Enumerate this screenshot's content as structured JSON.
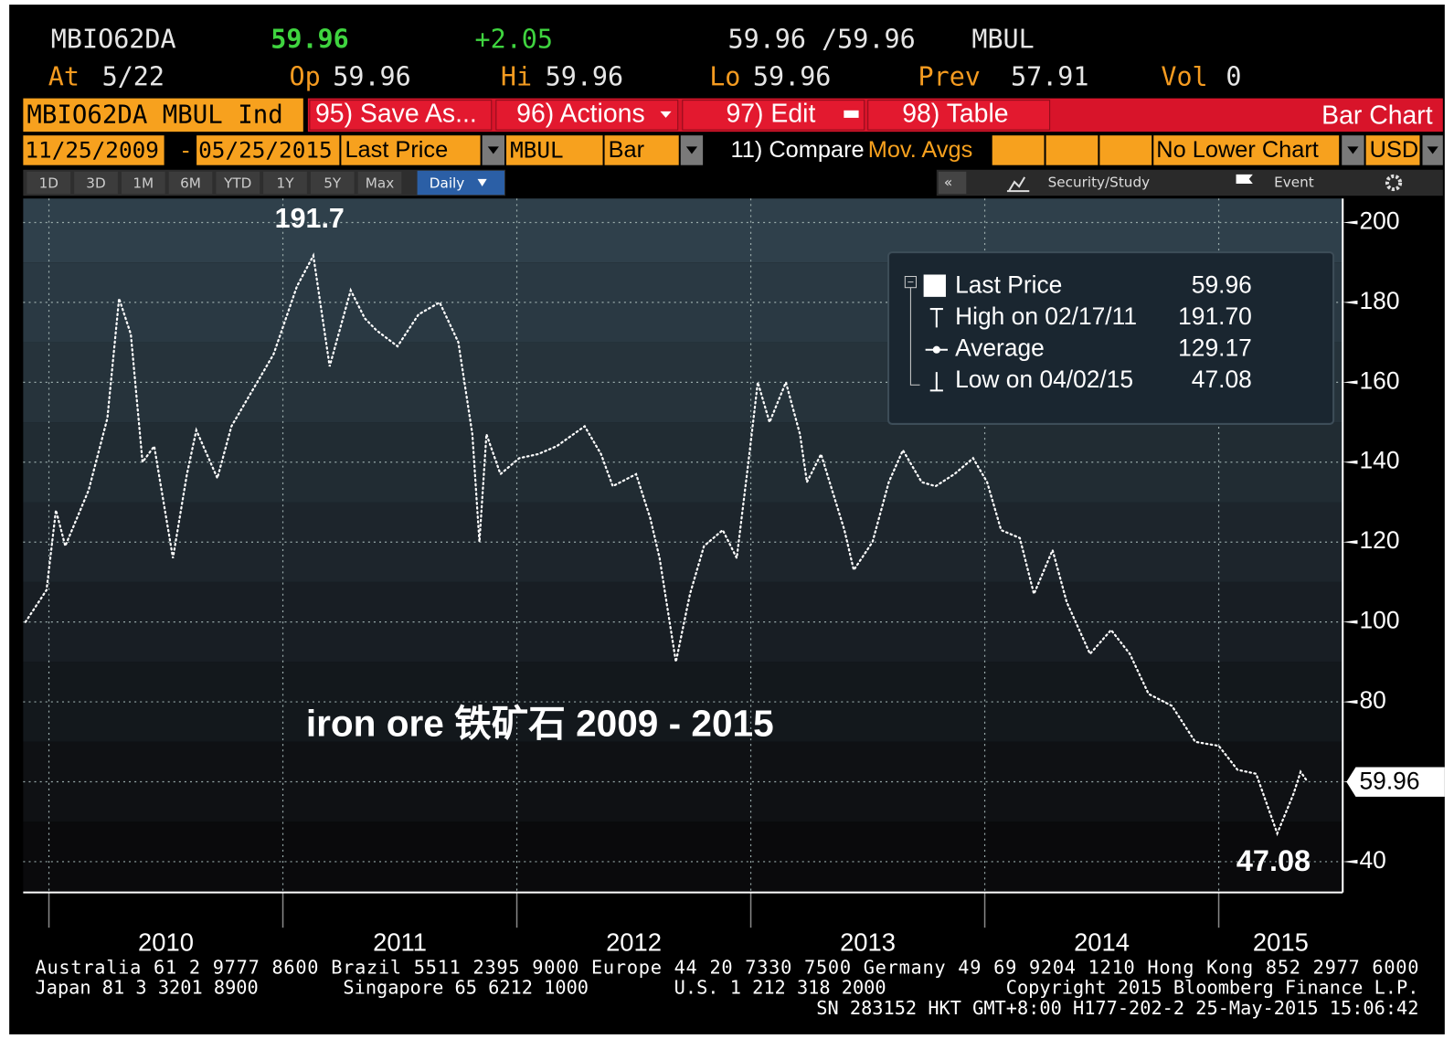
{
  "header": {
    "ticker": "MBIO62DA",
    "price": "59.96",
    "change": "+2.05",
    "bid_ask": "59.96 /59.96",
    "source": "MBUL",
    "stats": [
      {
        "label": "At",
        "value": "5/22"
      },
      {
        "label": "Op",
        "value": "59.96"
      },
      {
        "label": "Hi",
        "value": "59.96"
      },
      {
        "label": "Lo",
        "value": "59.96"
      },
      {
        "label": "Prev",
        "value": "57.91"
      },
      {
        "label": "Vol",
        "value": "0"
      }
    ]
  },
  "toolbar": {
    "security": "MBIO62DA MBUL Ind",
    "buttons": [
      "95) Save As...",
      "96) Actions",
      "97) Edit",
      "98) Table"
    ],
    "chart_kind": "Bar Chart",
    "start_date": "11/25/2009",
    "date_sep": "-",
    "end_date": "05/25/2015",
    "field": "Last Price",
    "source": "MBUL",
    "style": "Bar",
    "compare": "11) Compare",
    "studies": "Mov. Avgs",
    "lower": "No Lower Chart",
    "currency": "USD",
    "periods": [
      "1D",
      "3D",
      "1M",
      "6M",
      "YTD",
      "1Y",
      "5Y",
      "Max"
    ],
    "frequency": "Daily",
    "collapse": "«",
    "security_study": "Security/Study",
    "event": "Event"
  },
  "chart_data": {
    "type": "line",
    "caption": "iron ore 铁矿石 2009 - 2015",
    "x": [
      2009.9,
      2009.99,
      2010.03,
      2010.07,
      2010.17,
      2010.25,
      2010.3,
      2010.35,
      2010.4,
      2010.45,
      2010.53,
      2010.59,
      2010.63,
      2010.72,
      2010.78,
      2010.87,
      2010.96,
      2011.06,
      2011.13,
      2011.2,
      2011.29,
      2011.35,
      2011.4,
      2011.49,
      2011.58,
      2011.67,
      2011.75,
      2011.81,
      2011.84,
      2011.87,
      2011.93,
      2012.01,
      2012.09,
      2012.17,
      2012.29,
      2012.36,
      2012.41,
      2012.51,
      2012.57,
      2012.61,
      2012.68,
      2012.74,
      2012.8,
      2012.88,
      2012.94,
      2012.99,
      2013.03,
      2013.08,
      2013.15,
      2013.21,
      2013.24,
      2013.3,
      2013.4,
      2013.44,
      2013.52,
      2013.59,
      2013.65,
      2013.73,
      2013.79,
      2013.87,
      2013.95,
      2014.01,
      2014.07,
      2014.15,
      2014.21,
      2014.29,
      2014.35,
      2014.45,
      2014.54,
      2014.62,
      2014.7,
      2014.8,
      2014.9,
      2015.0,
      2015.08,
      2015.16,
      2015.25,
      2015.32,
      2015.35,
      2015.38
    ],
    "series": [
      {
        "name": "Last Price",
        "color": "#ffffff",
        "values": [
          100,
          108,
          128,
          119,
          133,
          151,
          181,
          172,
          140,
          144,
          116,
          137,
          148,
          136,
          149,
          158,
          167,
          184,
          191.7,
          164,
          183,
          176,
          173,
          169,
          177,
          180,
          170,
          147,
          120,
          147,
          137,
          141,
          142,
          144,
          149,
          142,
          134,
          137,
          126,
          116,
          90,
          107,
          119,
          123,
          116,
          140,
          160,
          150,
          160,
          147,
          135,
          142,
          123,
          113,
          120,
          135,
          143,
          135,
          134,
          137,
          141,
          135,
          123,
          121,
          107,
          118,
          105,
          92,
          98,
          92,
          82,
          79,
          70,
          69,
          63,
          62,
          47.08,
          57,
          62.5,
          59.96
        ]
      }
    ],
    "xlim": [
      2009.89,
      2015.53
    ],
    "xticks": [
      2010,
      2011,
      2012,
      2013,
      2014,
      2015
    ],
    "ylim": [
      32.3,
      206
    ],
    "yticks": [
      40,
      60,
      80,
      100,
      120,
      140,
      160,
      180,
      200
    ],
    "grid": true,
    "legend": {
      "position": "top right",
      "last_value": "59.96",
      "stats": [
        {
          "label": "High on 02/17/11",
          "value": "191.70"
        },
        {
          "label": "Average",
          "value": "129.17"
        },
        {
          "label": "Low on 04/02/15",
          "value": "47.08"
        }
      ]
    },
    "annotations": [
      {
        "text": "191.7",
        "x": 2011.13,
        "y": 191.7
      },
      {
        "text": "47.08",
        "x": 2015.25,
        "y": 47.08
      }
    ],
    "last_tag": {
      "text": "59.96",
      "y": 59.96
    }
  },
  "footer": {
    "line1": "Australia 61 2 9777 8600 Brazil 5511 2395 9000 Europe 44 20 7330 7500 Germany 49 69 9204 1210 Hong Kong 852 2977 6000",
    "line2": [
      "Japan 81 3 3201 8900",
      "Singapore 65 6212 1000",
      "U.S. 1 212 318 2000",
      "Copyright 2015 Bloomberg Finance L.P."
    ],
    "line3": "SN 283152 HKT  GMT+8:00 H177-202-2 25-May-2015 15:06:42"
  }
}
